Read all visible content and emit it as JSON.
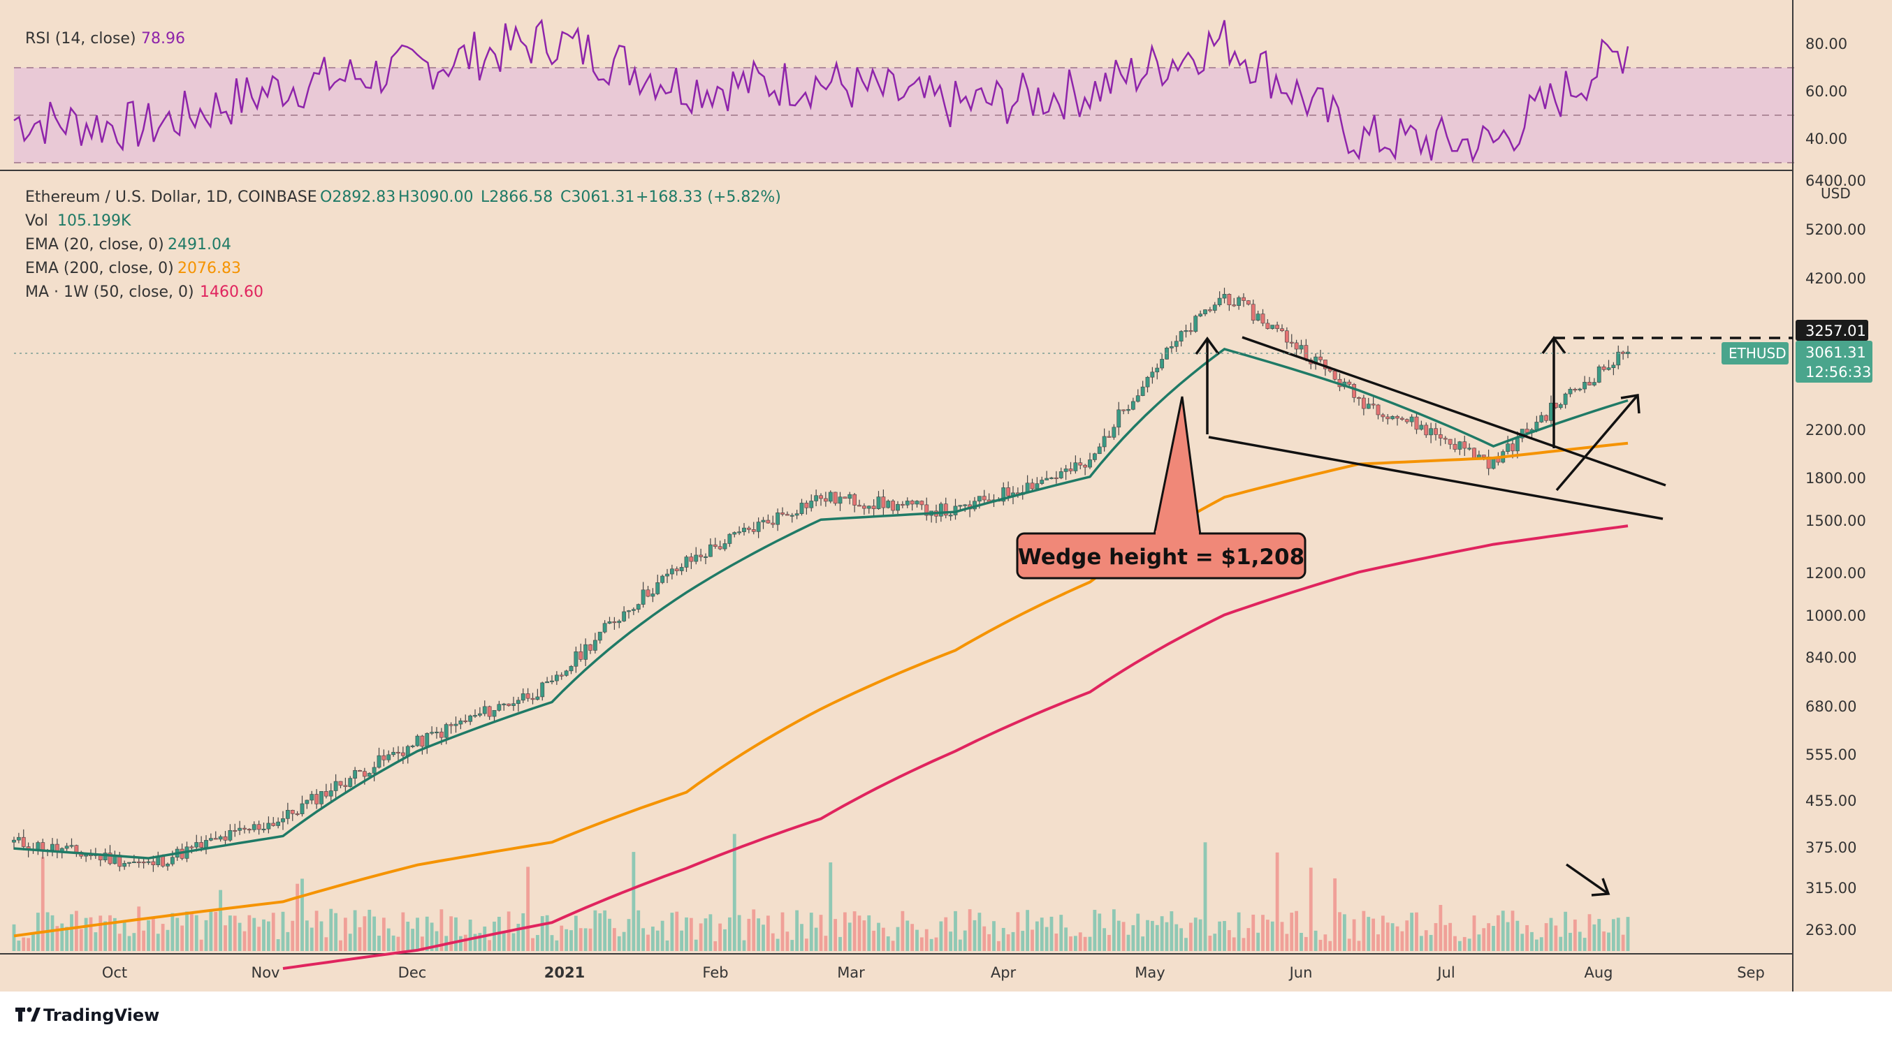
{
  "colors": {
    "background": "#f3dfcc",
    "grid": "#e4cdb7",
    "axis": "#3a3a3a",
    "text": "#333333",
    "rsi_line": "#8e24aa",
    "rsi_band": "#e9c9d6",
    "candle_up": "#3a9a84",
    "candle_down": "#e57373",
    "candle_wick": "#444444",
    "vol_up": "#8fc8b4",
    "vol_down": "#f0a098",
    "ema20": "#1f7a66",
    "ema200": "#f59300",
    "ma50w": "#e0245e",
    "annotation_fill": "#f08878",
    "price_tag": "#4aa58c",
    "level_tag": "#1b1b1b"
  },
  "rsi_panel": {
    "legend_name": "RSI (14, close)",
    "legend_value": "78.96",
    "ticks": [
      "80.00",
      "60.00",
      "40.00"
    ]
  },
  "price_panel": {
    "legend_symbol": "Ethereum / U.S. Dollar, 1D, COINBASE",
    "legend_open": "O2892.83",
    "legend_high": "H3090.00",
    "legend_low": "L2866.58",
    "legend_close": "C3061.31",
    "legend_change": "+168.33 (+5.82%)",
    "vol_name": "Vol",
    "vol_value": "105.199K",
    "ema20_name": "EMA (20, close, 0)",
    "ema20_value": "2491.04",
    "ema200_name": "EMA (200, close, 0)",
    "ema200_value": "2076.83",
    "ma_name": "MA · 1W (50, close, 0)",
    "ma_value": "1460.60",
    "currency": "USD",
    "y_ticks": [
      "6400.00",
      "5200.00",
      "4200.00",
      "2200.00",
      "1800.00",
      "1500.00",
      "1200.00",
      "1000.00",
      "840.00",
      "680.00",
      "555.00",
      "455.00",
      "375.00",
      "315.00",
      "263.00"
    ],
    "level_tag": "3257.01",
    "symbol_tag": "ETHUSD",
    "price_tag": "3061.31",
    "countdown_tag": "12:56:33",
    "annotation": "Wedge height = $1,208"
  },
  "x_axis": {
    "labels": [
      "Oct",
      "Nov",
      "Dec",
      "2021",
      "Feb",
      "Mar",
      "Apr",
      "May",
      "Jun",
      "Jul",
      "Aug",
      "Sep"
    ]
  },
  "footer": {
    "brand": "TradingView"
  },
  "chart_data": [
    {
      "type": "line",
      "title": "RSI (14, close)",
      "x": [
        "Sep",
        "Oct",
        "Nov",
        "Dec",
        "2021",
        "Jan",
        "Feb",
        "Mar",
        "Apr",
        "May",
        "Jun",
        "Jul",
        "Aug"
      ],
      "series": [
        {
          "name": "RSI (14, close)",
          "values": [
            48,
            45,
            62,
            70,
            82,
            62,
            64,
            54,
            60,
            82,
            40,
            38,
            79
          ]
        }
      ],
      "ylim": [
        30,
        92
      ],
      "bands": [
        30,
        70
      ],
      "grid": false
    },
    {
      "type": "line",
      "title": "Ethereum / U.S. Dollar, 1D, COINBASE",
      "ylabel": "USD",
      "y_scale": "log",
      "x": [
        "Sep",
        "Oct",
        "Nov",
        "Dec",
        "2021",
        "Jan",
        "Feb",
        "Mar",
        "Apr",
        "May",
        "Jun",
        "Jul",
        "Aug"
      ],
      "series": [
        {
          "name": "ETHUSD",
          "values": [
            380,
            345,
            420,
            580,
            740,
            1250,
            1650,
            1550,
            1900,
            3900,
            2500,
            1900,
            3061.31
          ]
        },
        {
          "name": "EMA (20, close, 0)",
          "values": [
            370,
            355,
            390,
            560,
            690,
            1100,
            1500,
            1550,
            1800,
            3100,
            2600,
            2050,
            2491.04
          ]
        },
        {
          "name": "EMA (200, close, 0)",
          "values": [
            255,
            275,
            295,
            345,
            380,
            470,
            670,
            860,
            1150,
            1650,
            1900,
            1950,
            2076.83
          ]
        },
        {
          "name": "MA · 1W (50, close, 0)",
          "values": [
            null,
            null,
            222,
            240,
            270,
            340,
            420,
            560,
            720,
            1000,
            1200,
            1350,
            1460.6
          ]
        }
      ],
      "volume": {
        "name": "Vol",
        "last": "105.199K"
      },
      "levels": [
        {
          "label": "3257.01",
          "value": 3257.01
        }
      ],
      "annotation": {
        "text": "Wedge height = $1,208"
      },
      "ylim": [
        230,
        7500
      ],
      "grid": false
    }
  ]
}
